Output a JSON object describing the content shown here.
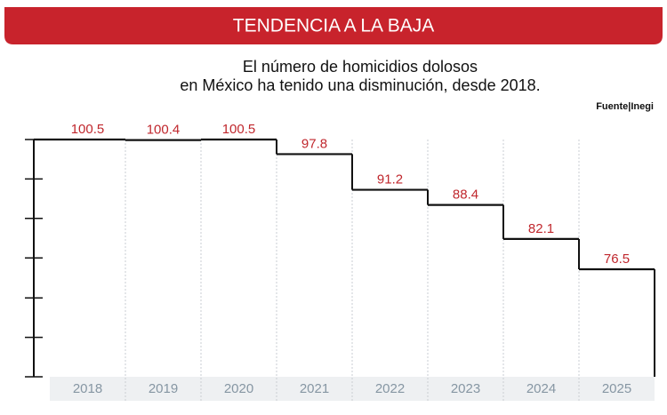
{
  "chart_data": {
    "type": "step",
    "title": "TENDENCIA A LA BAJA",
    "subtitle": [
      "El número de homicidios dolosos",
      "en México ha tenido una disminución, desde 2018."
    ],
    "source": "Fuente|Inegi",
    "categories": [
      "2018",
      "2019",
      "2020",
      "2021",
      "2022",
      "2023",
      "2024",
      "2025"
    ],
    "values": [
      100.5,
      100.4,
      100.5,
      97.8,
      91.2,
      88.4,
      82.1,
      76.5
    ],
    "color": "#111111",
    "label_color": "#c0272d",
    "ylim": [
      56.6,
      100.5
    ],
    "yticks": [
      56.6,
      63.9,
      71.2,
      78.6,
      85.9,
      93.2,
      100.5
    ]
  }
}
